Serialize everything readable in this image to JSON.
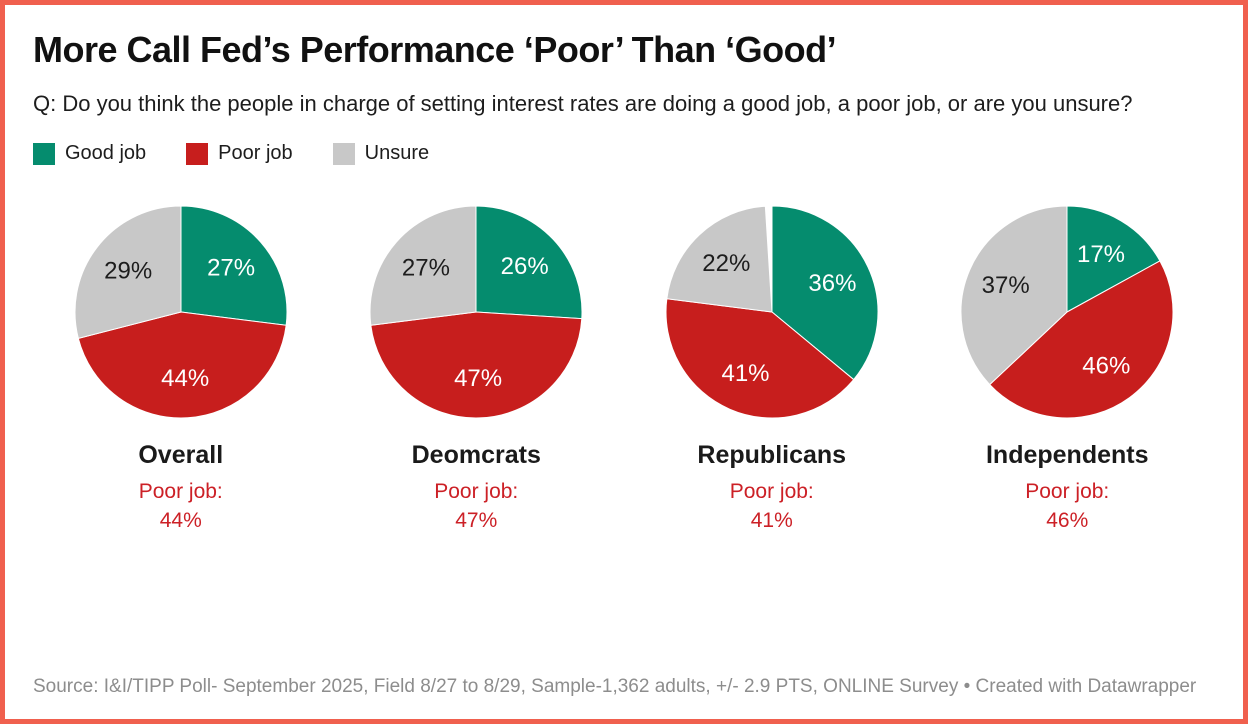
{
  "card": {
    "border_color": "#f0604e",
    "background": "#ffffff"
  },
  "header": {
    "title": "More Call Fed’s Performance ‘Poor’ Than ‘Good’",
    "question": "Q: Do you think the people in charge of setting interest rates are doing a good job, a poor job, or are you unsure?"
  },
  "legend": {
    "items": [
      {
        "label": "Good job",
        "color": "#058c6e",
        "label_color": "#ffffff"
      },
      {
        "label": "Poor job",
        "color": "#c71e1d",
        "label_color": "#ffffff"
      },
      {
        "label": "Unsure",
        "color": "#c8c8c8",
        "label_color": "#1d1d1d"
      }
    ]
  },
  "chart_data": {
    "type": "pie",
    "title": "More Call Fed’s Performance ‘Poor’ Than ‘Good’",
    "legend_position": "top",
    "start_angle": "12 o'clock, clockwise",
    "categories": [
      "Good job",
      "Poor job",
      "Unsure"
    ],
    "slice_label_format": "{value}%",
    "pies": [
      {
        "group": "Overall",
        "values": [
          27,
          44,
          29
        ],
        "callout_label": "Poor job:",
        "callout_value": "44%"
      },
      {
        "group": "Deomcrats",
        "values": [
          26,
          47,
          27
        ],
        "callout_label": "Poor job:",
        "callout_value": "47%"
      },
      {
        "group": "Republicans",
        "values": [
          36,
          41,
          22
        ],
        "callout_label": "Poor job:",
        "callout_value": "41%"
      },
      {
        "group": "Independents",
        "values": [
          17,
          46,
          37
        ],
        "callout_label": "Poor job:",
        "callout_value": "46%"
      }
    ]
  },
  "footer": {
    "source": "Source: I&I/TIPP Poll- September 2025, Field 8/27 to 8/29, Sample-1,362 adults, +/- 2.9 PTS, ONLINE Survey • Created with Datawrapper"
  },
  "colors": {
    "callout_red": "#cc2026",
    "text_dark": "#1a1a1a",
    "footer_gray": "#8d8d8d"
  }
}
